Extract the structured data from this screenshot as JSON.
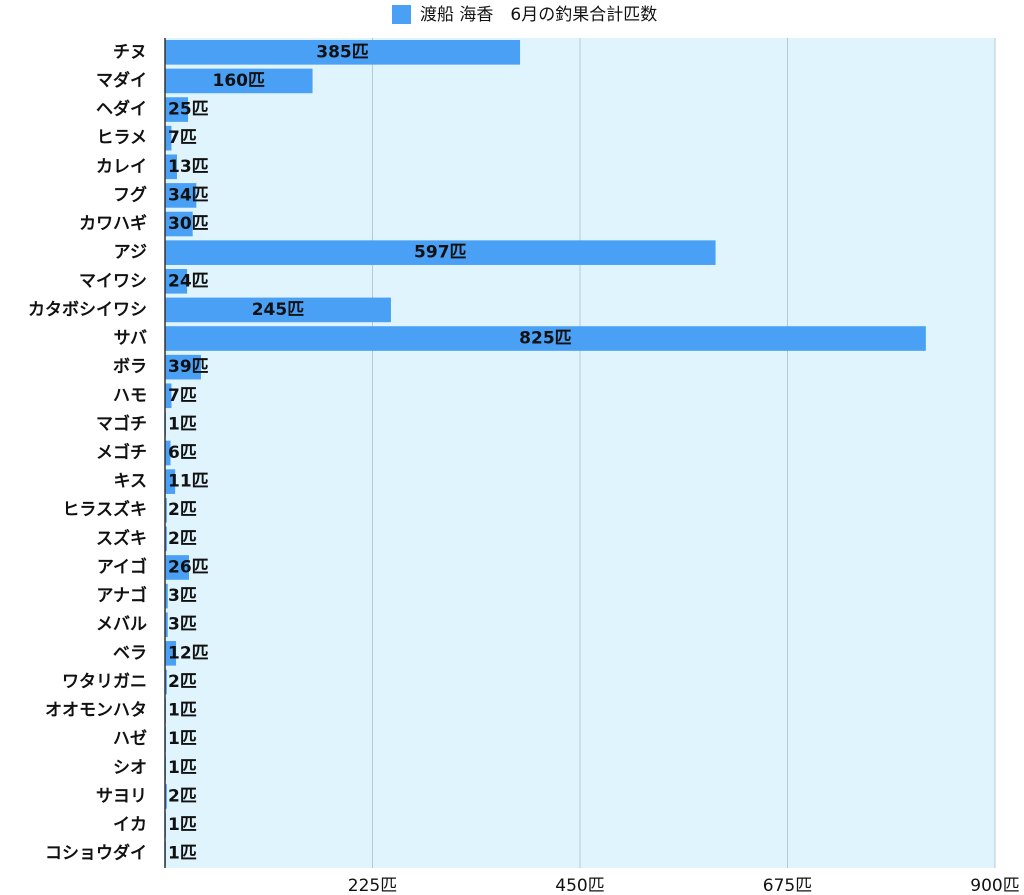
{
  "chart_data": {
    "type": "barh",
    "series": [
      {
        "name": "渡船 海香　6月の釣果合計匹数",
        "color": "#4aa0f5",
        "values": [
          385,
          160,
          25,
          7,
          13,
          34,
          30,
          597,
          24,
          245,
          825,
          39,
          7,
          1,
          6,
          11,
          2,
          2,
          26,
          3,
          3,
          12,
          2,
          1,
          1,
          1,
          2,
          1,
          1
        ],
        "value_labels": [
          "385匹",
          "160匹",
          "25匹",
          "7匹",
          "13匹",
          "34匹",
          "30匹",
          "597匹",
          "24匹",
          "245匹",
          "825匹",
          "39匹",
          "7匹",
          "1匹",
          "6匹",
          "11匹",
          "2匹",
          "2匹",
          "26匹",
          "3匹",
          "3匹",
          "12匹",
          "2匹",
          "1匹",
          "1匹",
          "1匹",
          "2匹",
          "1匹",
          "1匹"
        ]
      }
    ],
    "categories": [
      "チヌ",
      "マダイ",
      "ヘダイ",
      "ヒラメ",
      "カレイ",
      "フグ",
      "カワハギ",
      "アジ",
      "マイワシ",
      "カタボシイワシ",
      "サバ",
      "ボラ",
      "ハモ",
      "マゴチ",
      "メゴチ",
      "キス",
      "ヒラスズキ",
      "スズキ",
      "アイゴ",
      "アナゴ",
      "メバル",
      "ベラ",
      "ワタリガニ",
      "オオモンハタ",
      "ハゼ",
      "シオ",
      "サヨリ",
      "イカ",
      "コショウダイ"
    ],
    "xlim": [
      0,
      900
    ],
    "xticks": [
      {
        "value": 225,
        "label": "225匹"
      },
      {
        "value": 450,
        "label": "450匹"
      },
      {
        "value": 675,
        "label": "675匹"
      },
      {
        "value": 900,
        "label": "900匹"
      }
    ],
    "grid": true,
    "plot_background": "#dff4fc"
  }
}
